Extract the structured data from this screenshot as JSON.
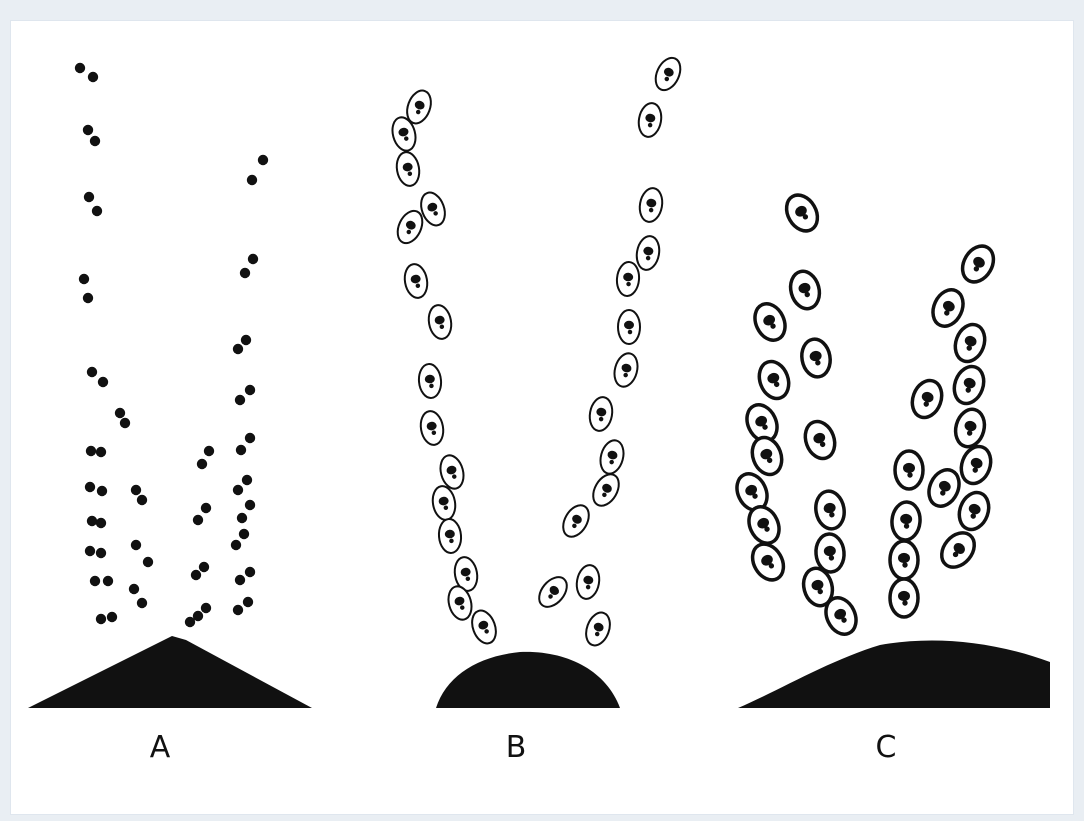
{
  "figure": {
    "panels": [
      {
        "id": "A",
        "label": "A",
        "particle_style": "solid-dots",
        "ground_shape": "cone"
      },
      {
        "id": "B",
        "label": "B",
        "particle_style": "outlined-ovals-with-cores",
        "ground_shape": "dome"
      },
      {
        "id": "C",
        "label": "C",
        "particle_style": "thick-outlined-ovals-with-cores",
        "ground_shape": "plateau"
      }
    ],
    "colors": {
      "background": "#ffffff",
      "frame": "#e9eef3",
      "ink": "#111111"
    }
  }
}
